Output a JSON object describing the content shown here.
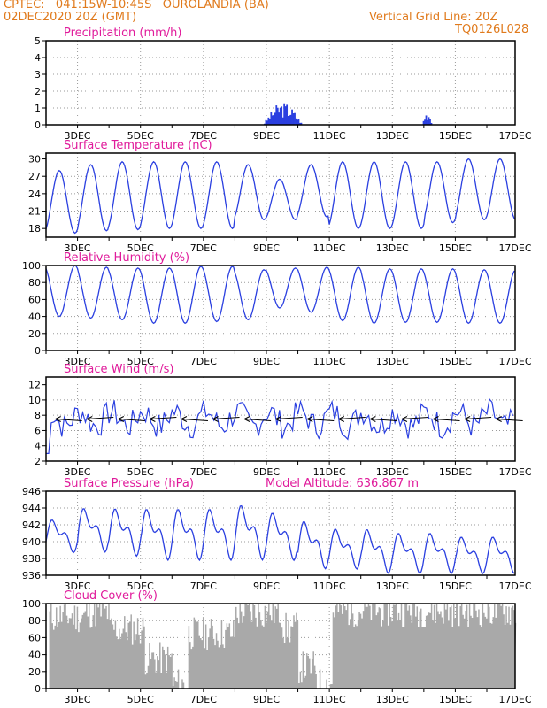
{
  "header": {
    "left_line1": "CPTEC:   041:15W-10:45S   OUROLANDIA (BA)",
    "left_line2": "02DEC2020 20Z (GMT)",
    "right_line1": "Vertical Grid Line: 20Z",
    "right_line2": "TQ0126L028",
    "color": "#e07a1c"
  },
  "colors": {
    "title": "#e01b9b",
    "line": "#2a3fe0",
    "bar": "#2a3fe0",
    "cloud": "#a9a9a9",
    "grid": "#9a9a9a"
  },
  "x_axis": {
    "tick_labels": [
      "3DEC",
      "5DEC",
      "7DEC",
      "9DEC",
      "11DEC",
      "13DEC",
      "15DEC",
      "17DEC"
    ],
    "domain_days": [
      0,
      14.9
    ]
  },
  "chart_data": [
    {
      "type": "bar",
      "title": "Precipitation (mm/h)",
      "ylim": [
        0,
        5
      ],
      "yticks": [
        "0",
        "1",
        "2",
        "3",
        "4",
        "5"
      ],
      "bursts": [
        {
          "center_day": 7.5,
          "width_day": 1.25,
          "peak": 1.2
        },
        {
          "center_day": 12.1,
          "width_day": 0.35,
          "peak": 0.75
        }
      ]
    },
    {
      "type": "line",
      "title": "Surface Temperature (nC)",
      "ylim": [
        16.5,
        31
      ],
      "yticks": [
        "18",
        "21",
        "24",
        "27",
        "30"
      ],
      "daily_min": [
        17.2,
        17.6,
        17.8,
        18.0,
        18.0,
        18.0,
        19.5,
        19.5,
        20.0,
        18.0,
        18.0,
        18.0,
        19.0,
        19.5,
        19.5
      ],
      "daily_max": [
        28.0,
        29.0,
        29.5,
        29.5,
        29.5,
        29.5,
        29.0,
        26.5,
        29.0,
        29.5,
        29.5,
        29.5,
        29.5,
        30.0,
        30.0
      ]
    },
    {
      "type": "line",
      "title": "Relative Humidity (%)",
      "ylim": [
        0,
        100
      ],
      "yticks": [
        "0",
        "20",
        "40",
        "60",
        "80",
        "100"
      ],
      "daily_max": [
        100,
        98,
        97,
        97,
        99,
        99,
        95,
        97,
        98,
        98,
        96,
        96,
        96,
        95,
        95
      ],
      "daily_min": [
        40,
        38,
        36,
        32,
        32,
        34,
        36,
        50,
        45,
        35,
        32,
        33,
        33,
        32,
        32
      ]
    },
    {
      "type": "line",
      "title": "Surface Wind (m/s)",
      "ylim": [
        2,
        13
      ],
      "yticks": [
        "2",
        "4",
        "6",
        "8",
        "10",
        "12"
      ],
      "mean": 7.5,
      "amplitude": 1.6
    },
    {
      "type": "line",
      "title": "Surface Pressure (hPa)",
      "ylim": [
        936,
        946
      ],
      "yticks": [
        "936",
        "938",
        "940",
        "942",
        "944",
        "946"
      ],
      "annotation": "Model Altitude: 636.867 m",
      "daily_max": [
        943,
        944.5,
        944.5,
        944.5,
        944.5,
        944.5,
        945,
        944,
        943,
        942,
        942,
        941.5,
        941.5,
        941,
        941
      ],
      "daily_min": [
        938.5,
        938.5,
        938,
        937.5,
        937.5,
        937.5,
        937.5,
        937.5,
        936.5,
        936.5,
        936,
        936,
        936,
        936,
        936
      ]
    },
    {
      "type": "area",
      "title": "Cloud Cover (%)",
      "ylim": [
        0,
        100
      ],
      "yticks": [
        "0",
        "20",
        "40",
        "60",
        "80",
        "100"
      ],
      "segments": [
        {
          "from_day": 0.1,
          "to_day": 1.25,
          "level": 85
        },
        {
          "from_day": 1.25,
          "to_day": 2.0,
          "level": 90
        },
        {
          "from_day": 2.0,
          "to_day": 3.1,
          "level": 70
        },
        {
          "from_day": 3.1,
          "to_day": 4.0,
          "level": 35
        },
        {
          "from_day": 4.0,
          "to_day": 4.5,
          "level": 5
        },
        {
          "from_day": 4.5,
          "to_day": 6.0,
          "level": 65
        },
        {
          "from_day": 6.0,
          "to_day": 7.5,
          "level": 90
        },
        {
          "from_day": 7.5,
          "to_day": 8.0,
          "level": 70
        },
        {
          "from_day": 8.0,
          "to_day": 8.6,
          "level": 25
        },
        {
          "from_day": 8.6,
          "to_day": 9.1,
          "level": 5
        },
        {
          "from_day": 9.1,
          "to_day": 14.9,
          "level": 92
        }
      ]
    }
  ]
}
